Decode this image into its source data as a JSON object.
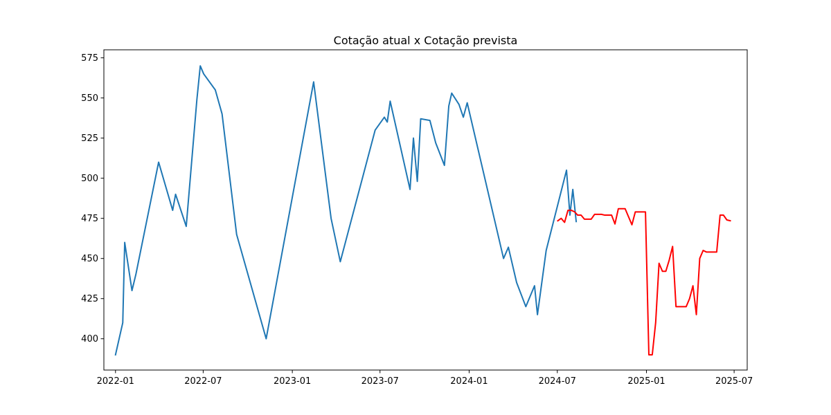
{
  "chart_data": {
    "type": "line",
    "title": "Cotação atual x Cotação prevista",
    "xlabel": "",
    "ylabel": "",
    "x_axis_type": "date",
    "xlim": [
      "2021-12-08",
      "2025-07-28"
    ],
    "ylim": [
      380.5,
      580
    ],
    "grid": false,
    "legend": "none",
    "x_ticks": [
      "2022-01",
      "2022-07",
      "2023-01",
      "2023-07",
      "2024-01",
      "2024-07",
      "2025-01",
      "2025-07"
    ],
    "x_tick_dates": [
      "2022-01-01",
      "2022-07-01",
      "2023-01-01",
      "2023-07-01",
      "2024-01-01",
      "2024-07-01",
      "2025-01-01",
      "2025-07-01"
    ],
    "y_ticks": [
      400,
      425,
      450,
      475,
      500,
      525,
      550,
      575
    ],
    "series": [
      {
        "color": "#1f77b4",
        "points": [
          [
            "2022-01-01",
            390
          ],
          [
            "2022-01-16",
            410
          ],
          [
            "2022-01-20",
            460
          ],
          [
            "2022-02-04",
            430
          ],
          [
            "2022-02-12",
            440
          ],
          [
            "2022-03-31",
            510
          ],
          [
            "2022-04-29",
            480
          ],
          [
            "2022-05-05",
            490
          ],
          [
            "2022-05-27",
            470
          ],
          [
            "2022-06-18",
            549
          ],
          [
            "2022-06-25",
            570
          ],
          [
            "2022-07-02",
            565
          ],
          [
            "2022-07-26",
            555
          ],
          [
            "2022-08-09",
            540
          ],
          [
            "2022-09-08",
            465
          ],
          [
            "2022-11-08",
            400
          ],
          [
            "2023-02-14",
            560
          ],
          [
            "2023-03-22",
            475
          ],
          [
            "2023-04-10",
            448
          ],
          [
            "2023-06-21",
            530
          ],
          [
            "2023-07-10",
            538
          ],
          [
            "2023-07-16",
            535
          ],
          [
            "2023-07-22",
            548
          ],
          [
            "2023-09-01",
            493
          ],
          [
            "2023-09-08",
            525
          ],
          [
            "2023-09-16",
            498
          ],
          [
            "2023-09-23",
            537
          ],
          [
            "2023-10-12",
            536
          ],
          [
            "2023-10-24",
            522
          ],
          [
            "2023-11-11",
            508
          ],
          [
            "2023-11-20",
            545
          ],
          [
            "2023-11-26",
            553
          ],
          [
            "2023-12-11",
            546
          ],
          [
            "2023-12-20",
            538
          ],
          [
            "2023-12-28",
            547
          ],
          [
            "2024-03-12",
            450
          ],
          [
            "2024-03-22",
            457
          ],
          [
            "2024-04-08",
            435
          ],
          [
            "2024-04-27",
            420
          ],
          [
            "2024-05-15",
            433
          ],
          [
            "2024-05-21",
            415
          ],
          [
            "2024-06-08",
            455
          ],
          [
            "2024-07-20",
            505
          ],
          [
            "2024-07-27",
            477
          ],
          [
            "2024-08-02",
            493
          ],
          [
            "2024-08-09",
            473
          ]
        ]
      },
      {
        "color": "#ff0000",
        "points": [
          [
            "2024-07-02",
            473.5
          ],
          [
            "2024-07-09",
            475
          ],
          [
            "2024-07-16",
            472.5
          ],
          [
            "2024-07-23",
            480
          ],
          [
            "2024-07-30",
            480
          ],
          [
            "2024-08-06",
            479
          ],
          [
            "2024-08-12",
            477
          ],
          [
            "2024-08-19",
            477
          ],
          [
            "2024-08-26",
            474.5
          ],
          [
            "2024-09-02",
            474.5
          ],
          [
            "2024-09-09",
            474.5
          ],
          [
            "2024-09-16",
            477.5
          ],
          [
            "2024-09-23",
            477.5
          ],
          [
            "2024-09-30",
            477.5
          ],
          [
            "2024-10-07",
            477
          ],
          [
            "2024-10-14",
            477
          ],
          [
            "2024-10-21",
            477
          ],
          [
            "2024-10-28",
            471.5
          ],
          [
            "2024-11-04",
            481
          ],
          [
            "2024-11-11",
            481
          ],
          [
            "2024-11-18",
            481
          ],
          [
            "2024-11-25",
            476
          ],
          [
            "2024-12-02",
            471
          ],
          [
            "2024-12-09",
            479
          ],
          [
            "2024-12-16",
            479
          ],
          [
            "2024-12-23",
            479
          ],
          [
            "2024-12-30",
            479
          ],
          [
            "2025-01-06",
            390
          ],
          [
            "2025-01-13",
            390
          ],
          [
            "2025-01-20",
            410
          ],
          [
            "2025-01-27",
            447
          ],
          [
            "2025-02-03",
            442
          ],
          [
            "2025-02-10",
            442
          ],
          [
            "2025-02-17",
            449
          ],
          [
            "2025-02-24",
            457.5
          ],
          [
            "2025-03-03",
            420
          ],
          [
            "2025-03-10",
            420
          ],
          [
            "2025-03-17",
            420
          ],
          [
            "2025-03-24",
            420
          ],
          [
            "2025-03-31",
            425
          ],
          [
            "2025-04-07",
            433
          ],
          [
            "2025-04-14",
            415
          ],
          [
            "2025-04-21",
            450
          ],
          [
            "2025-04-28",
            455
          ],
          [
            "2025-05-05",
            454
          ],
          [
            "2025-05-12",
            454
          ],
          [
            "2025-05-19",
            454
          ],
          [
            "2025-05-26",
            454
          ],
          [
            "2025-06-02",
            477
          ],
          [
            "2025-06-09",
            477
          ],
          [
            "2025-06-16",
            474
          ],
          [
            "2025-06-23",
            473.5
          ]
        ]
      }
    ]
  }
}
